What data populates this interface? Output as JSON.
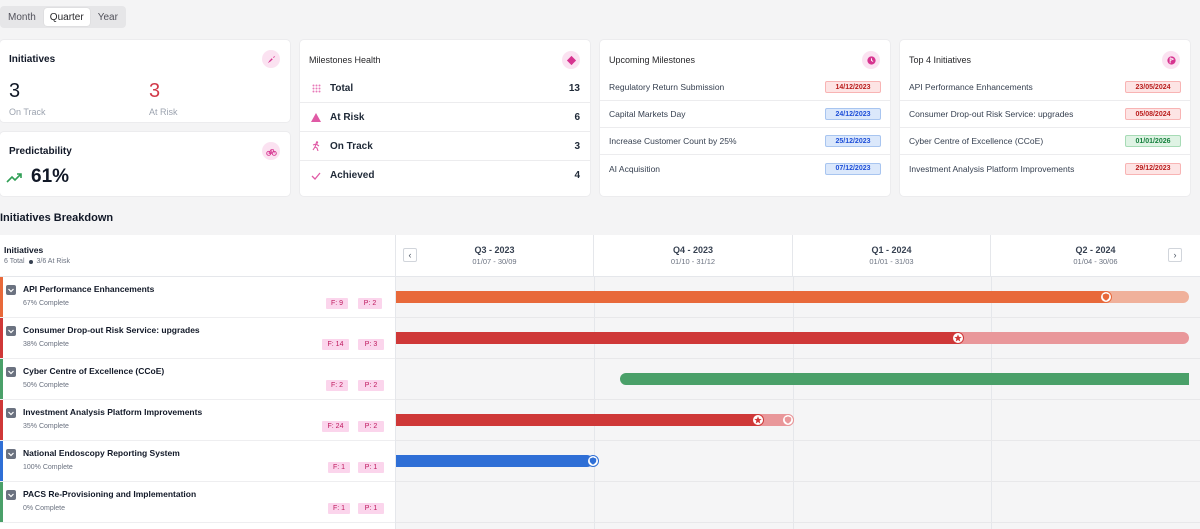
{
  "period": {
    "options": [
      "Month",
      "Quarter",
      "Year"
    ],
    "selected": "Quarter"
  },
  "initiatives_card": {
    "title": "Initiatives",
    "on_track_value": "3",
    "on_track_label": "On Track",
    "at_risk_value": "3",
    "at_risk_label": "At Risk"
  },
  "predictability_card": {
    "title": "Predictability",
    "value": "61%"
  },
  "milestones_health": {
    "title": "Milestones Health",
    "rows": [
      {
        "label": "Total",
        "count": "13"
      },
      {
        "label": "At Risk",
        "count": "6"
      },
      {
        "label": "On Track",
        "count": "3"
      },
      {
        "label": "Achieved",
        "count": "4"
      }
    ]
  },
  "upcoming_milestones": {
    "title": "Upcoming Milestones",
    "rows": [
      {
        "label": "Regulatory Return Submission",
        "date": "14/12/2023",
        "status": "red"
      },
      {
        "label": "Capital Markets Day",
        "date": "24/12/2023",
        "status": "blue"
      },
      {
        "label": "Increase Customer Count by 25%",
        "date": "25/12/2023",
        "status": "blue"
      },
      {
        "label": "AI Acquisition",
        "date": "07/12/2023",
        "status": "blue"
      }
    ]
  },
  "top_initiatives": {
    "title": "Top 4 Initiatives",
    "rows": [
      {
        "label": "API Performance Enhancements",
        "date": "23/05/2024",
        "status": "red"
      },
      {
        "label": "Consumer Drop-out Risk Service: upgrades",
        "date": "05/08/2024",
        "status": "red"
      },
      {
        "label": "Cyber Centre of Excellence (CCoE)",
        "date": "01/01/2026",
        "status": "green"
      },
      {
        "label": "Investment Analysis Platform Improvements",
        "date": "29/12/2023",
        "status": "red"
      }
    ]
  },
  "breakdown": {
    "title": "Initiatives Breakdown",
    "header": {
      "label": "Initiatives",
      "total": "6 Total",
      "at_risk": "3/6 At Risk"
    },
    "quarters": [
      {
        "title": "Q3 - 2023",
        "range": "01/07 - 30/09"
      },
      {
        "title": "Q4 - 2023",
        "range": "01/10 - 31/12"
      },
      {
        "title": "Q1 - 2024",
        "range": "01/01 - 31/03"
      },
      {
        "title": "Q2 - 2024",
        "range": "01/04 - 30/06"
      }
    ],
    "rows": [
      {
        "name": "API Performance Enhancements",
        "complete": "67% Complete",
        "f": "F: 9",
        "p": "P: 2",
        "color": "#e8693a",
        "light": "#f0b19b"
      },
      {
        "name": "Consumer Drop-out Risk Service: upgrades",
        "complete": "38% Complete",
        "f": "F: 14",
        "p": "P: 3",
        "color": "#cf3838",
        "light": "#e9979a"
      },
      {
        "name": "Cyber Centre of Excellence (CCoE)",
        "complete": "50% Complete",
        "f": "F: 2",
        "p": "P: 2",
        "color": "#4aa069",
        "light": "#4aa069"
      },
      {
        "name": "Investment Analysis Platform Improvements",
        "complete": "35% Complete",
        "f": "F: 24",
        "p": "P: 2",
        "color": "#cf3838",
        "light": "#e9979a"
      },
      {
        "name": "National Endoscopy Reporting System",
        "complete": "100% Complete",
        "f": "F: 1",
        "p": "P: 1",
        "color": "#2f6fd6",
        "light": "#2f6fd6"
      },
      {
        "name": "PACS Re-Provisioning and Implementation",
        "complete": "0% Complete",
        "f": "F: 1",
        "p": "P: 1",
        "color": "#4aa069",
        "light": "#4aa069"
      }
    ]
  },
  "colors": {
    "accent": "#d6338f",
    "at_risk": "#d23a4a",
    "trend": "#2f9e55"
  }
}
